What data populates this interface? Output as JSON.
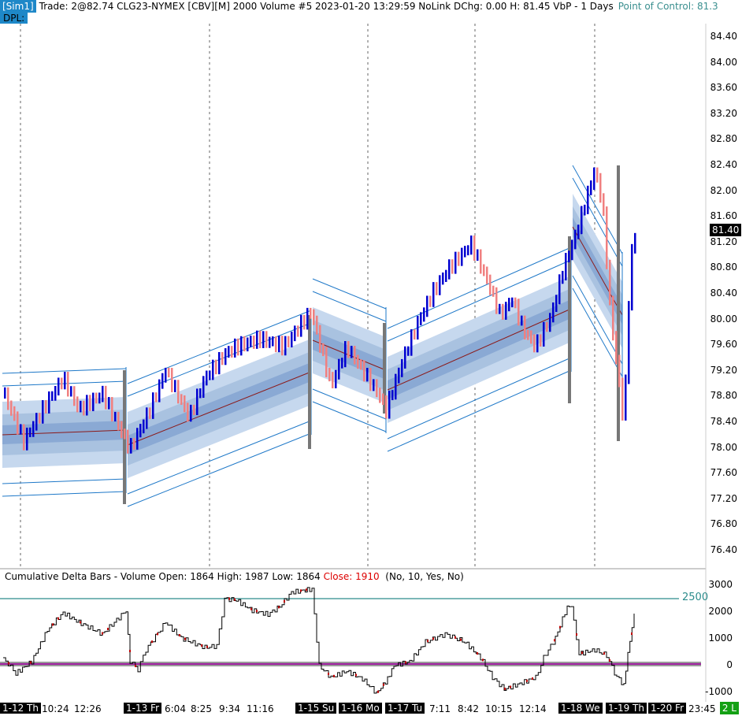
{
  "header": {
    "sim_label": "[Sim1]",
    "info": "Trade: 2@82.74  CLG23-NYMEX [CBV][M]  2000  Volume #5  2023-01-20 13:29:59  NoLink  DChg: 0.00  H: 81.45  VbP - 1 Days",
    "poc": "Point of Control: 81.3",
    "dpl": "DPL:"
  },
  "price_axis": [
    "84.40",
    "84.00",
    "83.60",
    "83.20",
    "82.80",
    "82.40",
    "82.00",
    "81.60",
    "81.20",
    "80.80",
    "80.40",
    "80.00",
    "79.60",
    "79.20",
    "78.80",
    "78.40",
    "78.00",
    "77.60",
    "77.20",
    "76.80",
    "76.40"
  ],
  "last_price": "81.40",
  "delta_panel": {
    "title": "Cumulative Delta Bars - ",
    "title2": "Volume  Open: 1864  High: 1987  Low: 1864  ",
    "close": "Close: 1910",
    "params": "(No, 10, Yes, No)",
    "axis": [
      "3000",
      "2000",
      "1000",
      "0",
      "-1000"
    ],
    "level_label": "2500"
  },
  "time_axis": [
    {
      "t": "1-12 Th",
      "dark": true
    },
    {
      "t": "10:24",
      "dark": false
    },
    {
      "t": "12:26",
      "dark": false
    },
    {
      "t": "1-13 Fr",
      "dark": true
    },
    {
      "t": "6:04",
      "dark": false
    },
    {
      "t": "8:25",
      "dark": false
    },
    {
      "t": "9:34",
      "dark": false
    },
    {
      "t": "11:16",
      "dark": false
    },
    {
      "t": "1-15 Su",
      "dark": true
    },
    {
      "t": "1-16 Mo",
      "dark": true
    },
    {
      "t": "1-17 Tu",
      "dark": true
    },
    {
      "t": "7:11",
      "dark": false
    },
    {
      "t": "8:42",
      "dark": false
    },
    {
      "t": "10:15",
      "dark": false
    },
    {
      "t": "12:14",
      "dark": false
    },
    {
      "t": "1-18 We",
      "dark": true
    },
    {
      "t": "1-19 Th",
      "dark": true
    },
    {
      "t": "1-20 Fr",
      "dark": true
    },
    {
      "t": "23:45",
      "dark": false
    }
  ],
  "status_badge": "2 L",
  "colors": {
    "up": "#0000d0",
    "down": "#f08080",
    "band_outer": "#c6d8ee",
    "band_mid": "#a9c2e0",
    "band_inner": "#8aa9d4",
    "line": "#1e78c8",
    "zero_line": "#a020a0"
  }
}
